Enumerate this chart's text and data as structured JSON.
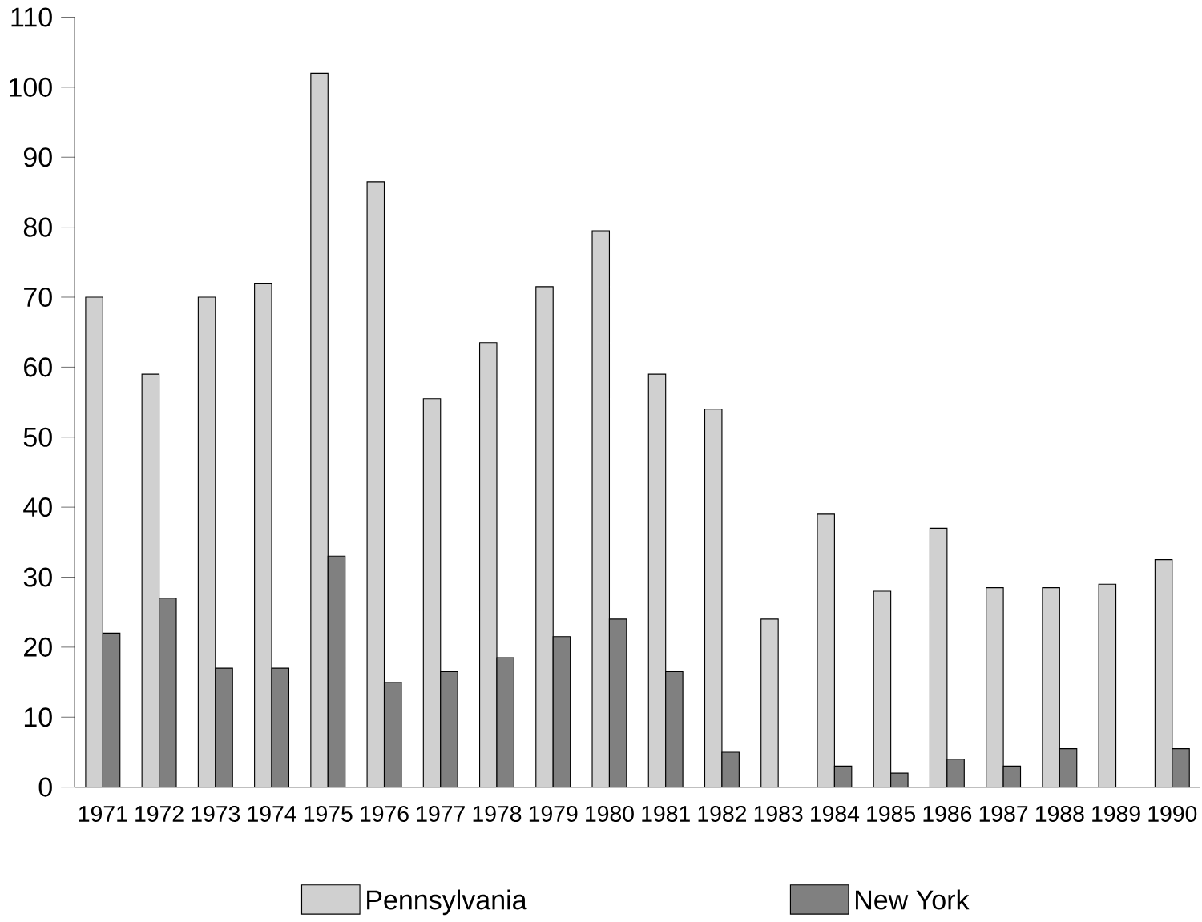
{
  "chart_data": {
    "type": "bar",
    "categories": [
      "1971",
      "1972",
      "1973",
      "1974",
      "1975",
      "1976",
      "1977",
      "1978",
      "1979",
      "1980",
      "1981",
      "1982",
      "1983",
      "1984",
      "1985",
      "1986",
      "1987",
      "1988",
      "1989",
      "1990"
    ],
    "series": [
      {
        "name": "Pennsylvania",
        "color": "#d0d0d0",
        "values": [
          70,
          59,
          70,
          72,
          102,
          86.5,
          55.5,
          63.5,
          71.5,
          79.5,
          59,
          54,
          24,
          39,
          28,
          37,
          28.5,
          28.5,
          29,
          32.5
        ]
      },
      {
        "name": "New York",
        "color": "#808080",
        "values": [
          22,
          27,
          17,
          17,
          33,
          15,
          16.5,
          18.5,
          21.5,
          24,
          16.5,
          5,
          null,
          3,
          2,
          4,
          3,
          5.5,
          null,
          5.5
        ]
      }
    ],
    "ylim": [
      0,
      110
    ],
    "yticks": [
      0,
      10,
      20,
      30,
      40,
      50,
      60,
      70,
      80,
      90,
      100,
      110
    ],
    "grid": false,
    "legend": "bottom"
  }
}
